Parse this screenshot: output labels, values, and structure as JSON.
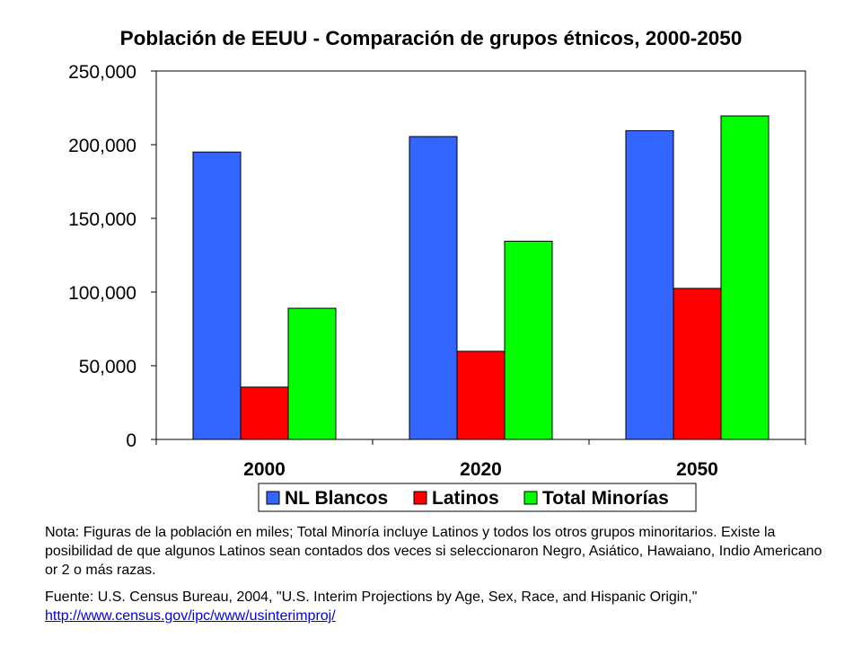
{
  "chart_data": {
    "type": "bar",
    "title": "Población de EEUU - Comparación de grupos étnicos, 2000-2050",
    "categories": [
      "2000",
      "2020",
      "2050"
    ],
    "series": [
      {
        "name": "NL Blancos",
        "values": [
          195000,
          205500,
          209500
        ],
        "color": "#3366ff"
      },
      {
        "name": "Latinos",
        "values": [
          35500,
          59800,
          102500
        ],
        "color": "#ff0000"
      },
      {
        "name": "Total Minorías",
        "values": [
          89000,
          134500,
          219500
        ],
        "color": "#00ff00"
      }
    ],
    "yticks": [
      "0",
      "50,000",
      "100,000",
      "150,000",
      "200,000",
      "250,000"
    ],
    "ylim": [
      0,
      250000
    ],
    "grid": true,
    "legend_position": "bottom-center",
    "xlabel": "",
    "ylabel": ""
  },
  "notes": {
    "note": "Nota: Figuras de la población en miles; Total Minoría incluye Latinos y todos los otros grupos minoritarios. Existe la posibilidad de que algunos Latinos sean contados dos veces si seleccionaron Negro, Asiático, Hawaiano, Indio Americano or 2 o más razas.",
    "source": "Fuente:  U.S. Census Bureau, 2004, \"U.S. Interim Projections by Age, Sex, Race, and Hispanic Origin,\"",
    "link": "http://www.census.gov/ipc/www/usinterimproj/"
  }
}
